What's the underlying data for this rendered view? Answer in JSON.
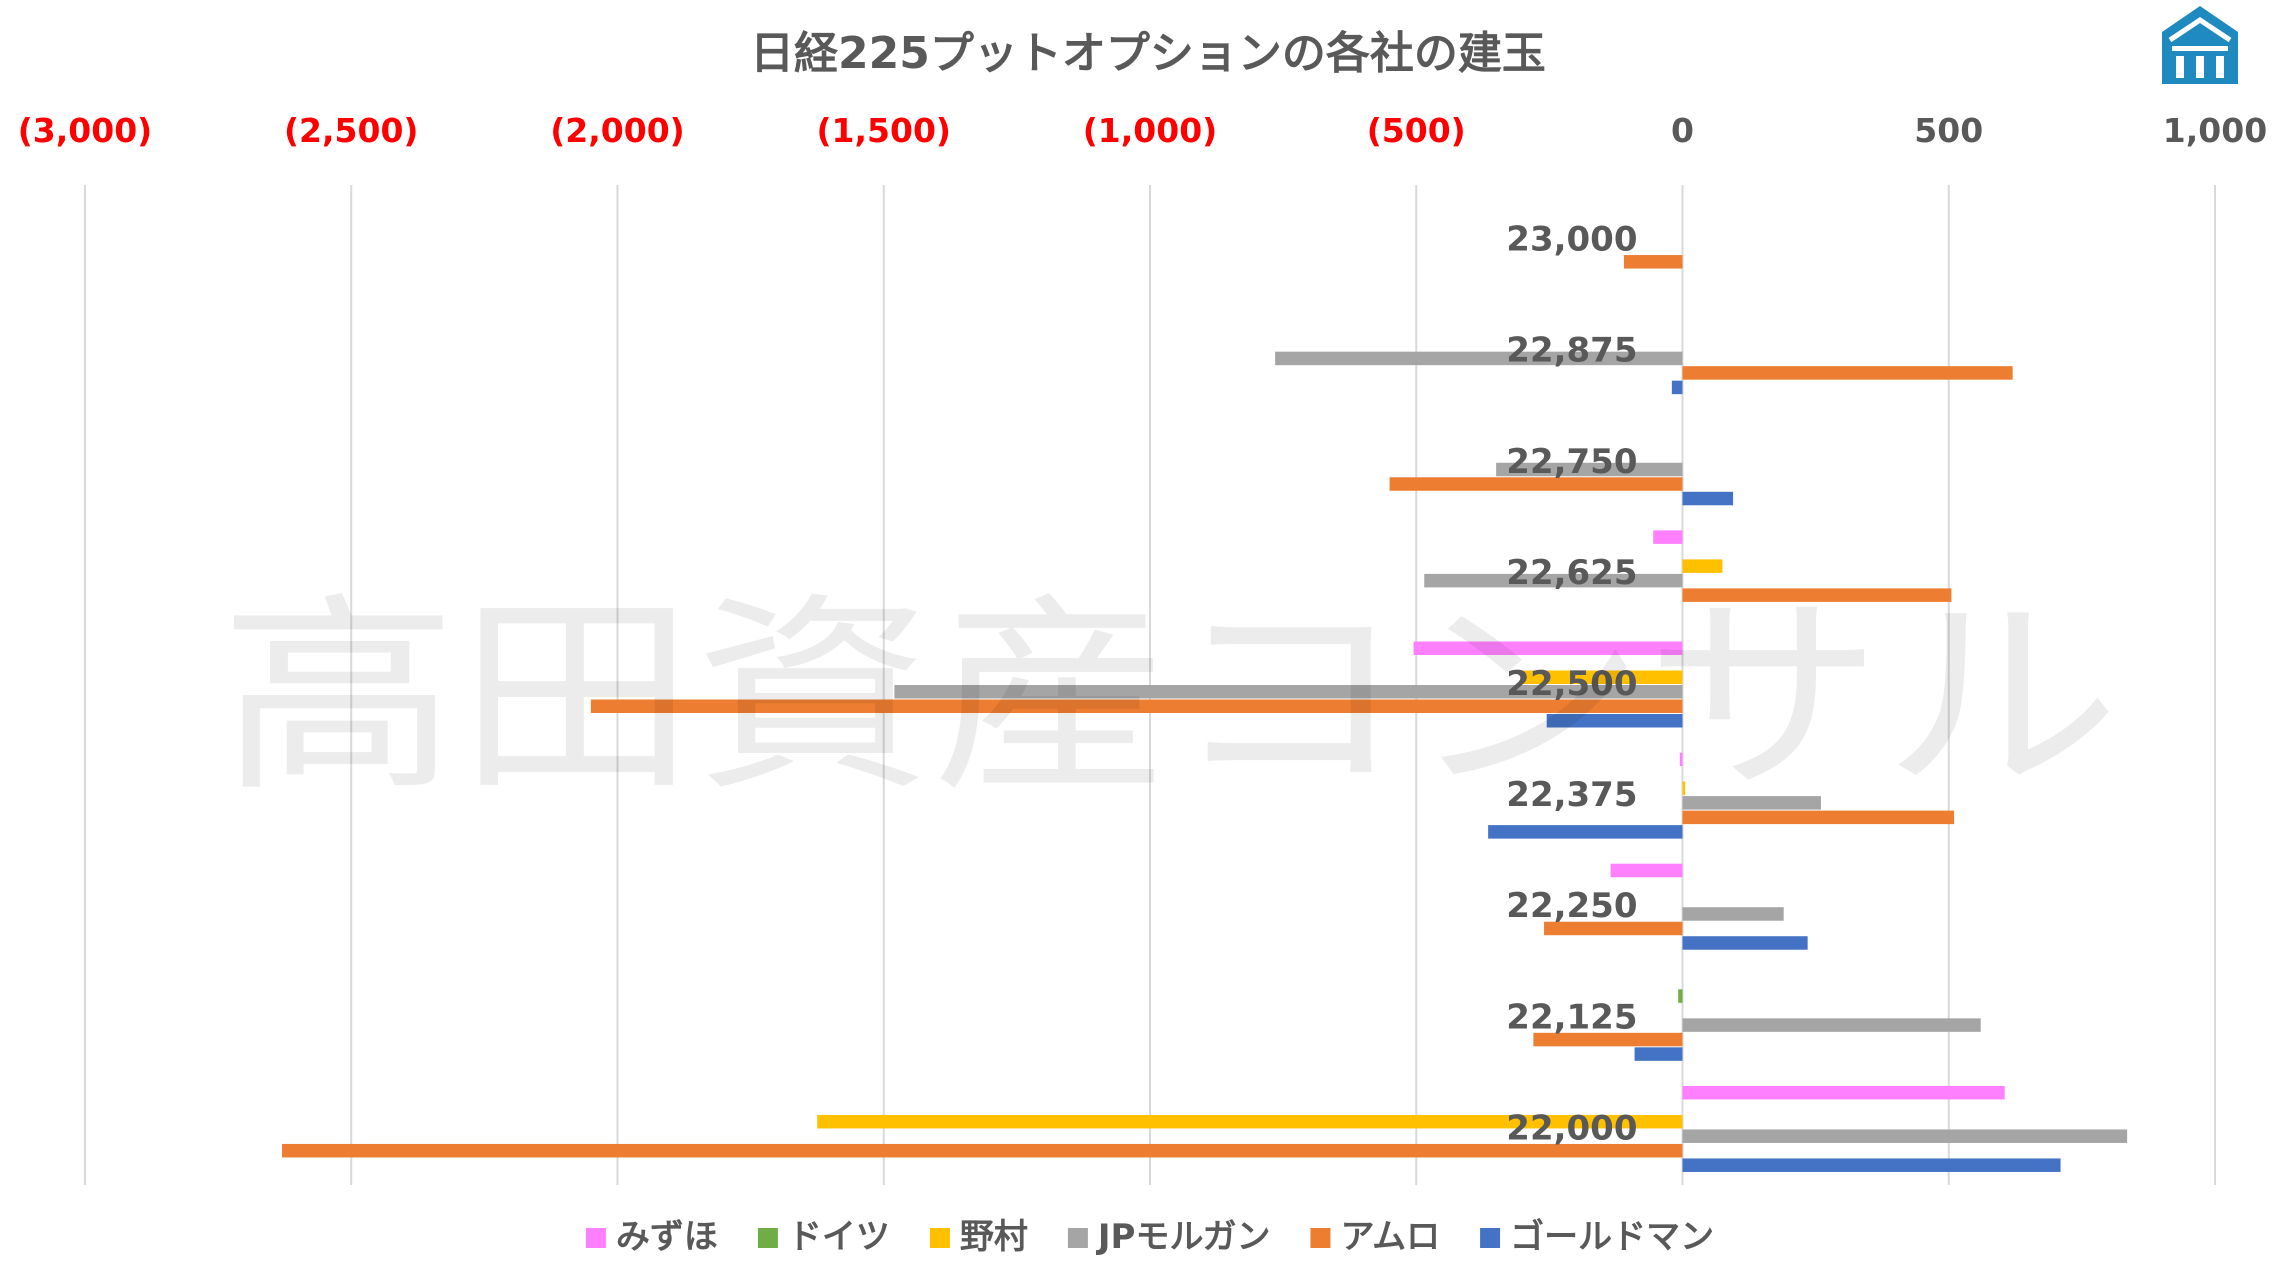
{
  "chart_data": {
    "type": "bar",
    "orientation": "horizontal",
    "title": "日経225プットオプションの各社の建玉",
    "xlim": [
      -3000,
      1000
    ],
    "x_ticks": [
      -3000,
      -2500,
      -2000,
      -1500,
      -1000,
      -500,
      0,
      500,
      1000
    ],
    "x_tick_labels": [
      "(3,000)",
      "(2,500)",
      "(2,000)",
      "(1,500)",
      "(1,000)",
      "(500)",
      "0",
      "500",
      "1,000"
    ],
    "negative_label_color": "#ff0000",
    "positive_label_color": "#595959",
    "grid": true,
    "legend_position": "bottom",
    "categories": [
      "23,000",
      "22,875",
      "22,750",
      "22,625",
      "22,500",
      "22,375",
      "22,250",
      "22,125",
      "22,000"
    ],
    "series": [
      {
        "name": "みずほ",
        "color": "#ff80ff",
        "values": [
          0,
          0,
          0,
          -55,
          -505,
          -5,
          -135,
          0,
          605
        ]
      },
      {
        "name": "ドイツ",
        "color": "#70ad47",
        "values": [
          0,
          0,
          0,
          0,
          0,
          0,
          0,
          -8,
          0
        ]
      },
      {
        "name": "野村",
        "color": "#ffc000",
        "values": [
          0,
          0,
          0,
          75,
          -300,
          5,
          0,
          0,
          -1625
        ]
      },
      {
        "name": "JPモルガン",
        "color": "#a5a5a5",
        "values": [
          0,
          -765,
          -350,
          -485,
          -1480,
          260,
          190,
          560,
          835
        ]
      },
      {
        "name": "アムロ",
        "color": "#ed7d31",
        "values": [
          -110,
          620,
          -550,
          505,
          -2050,
          510,
          -260,
          -280,
          -2630
        ]
      },
      {
        "name": "ゴールドマン",
        "color": "#4472c4",
        "values": [
          0,
          -20,
          95,
          0,
          -255,
          -365,
          235,
          -90,
          710
        ]
      }
    ]
  },
  "watermark_text": "高田資産コンサル",
  "logo_icon": "company-logo-icon"
}
